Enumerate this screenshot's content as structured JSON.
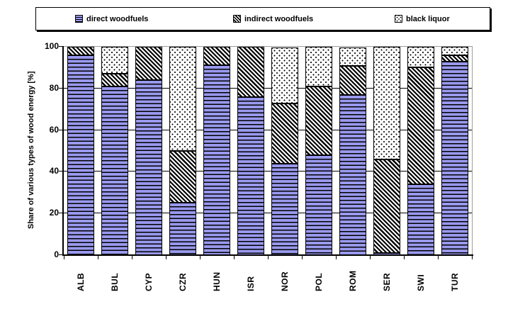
{
  "chart_data": {
    "type": "bar",
    "stacked": true,
    "title": "",
    "xlabel": "",
    "ylabel": "Share of various types of wood energy [%]",
    "ylim": [
      0,
      100
    ],
    "yticks": [
      0,
      20,
      40,
      60,
      80,
      100
    ],
    "grid": "horizontal-black-gridlines",
    "legend_position": "top-boxed",
    "categories": [
      "ALB",
      "BUL",
      "CYP",
      "CZR",
      "HUN",
      "ISR",
      "NOR",
      "POL",
      "ROM",
      "SER",
      "SWI",
      "TUR"
    ],
    "series": [
      {
        "name": "direct woodfuels",
        "pattern": "blue-with-black-horizontal-stripes",
        "pattern_key": "direct",
        "values": [
          96,
          81,
          84,
          25,
          91,
          76,
          44,
          48,
          77,
          1,
          34,
          93
        ]
      },
      {
        "name": "indirect woodfuels",
        "pattern": "black-diagonal-hatch-on-white",
        "pattern_key": "indirect",
        "values": [
          4,
          6,
          16,
          25,
          9,
          24,
          29,
          33,
          14,
          45,
          56,
          3
        ]
      },
      {
        "name": "black liquor",
        "pattern": "black-dots-on-white",
        "pattern_key": "dots",
        "values": [
          0,
          13,
          0,
          50,
          0,
          0,
          27,
          19,
          9,
          54,
          10,
          4
        ]
      }
    ]
  },
  "colors": {
    "direct_fill": "#9999ee",
    "pattern_ink": "#000000",
    "plot_border_gray": "#9c9c9c",
    "axis_black": "#000000",
    "background": "#ffffff"
  }
}
